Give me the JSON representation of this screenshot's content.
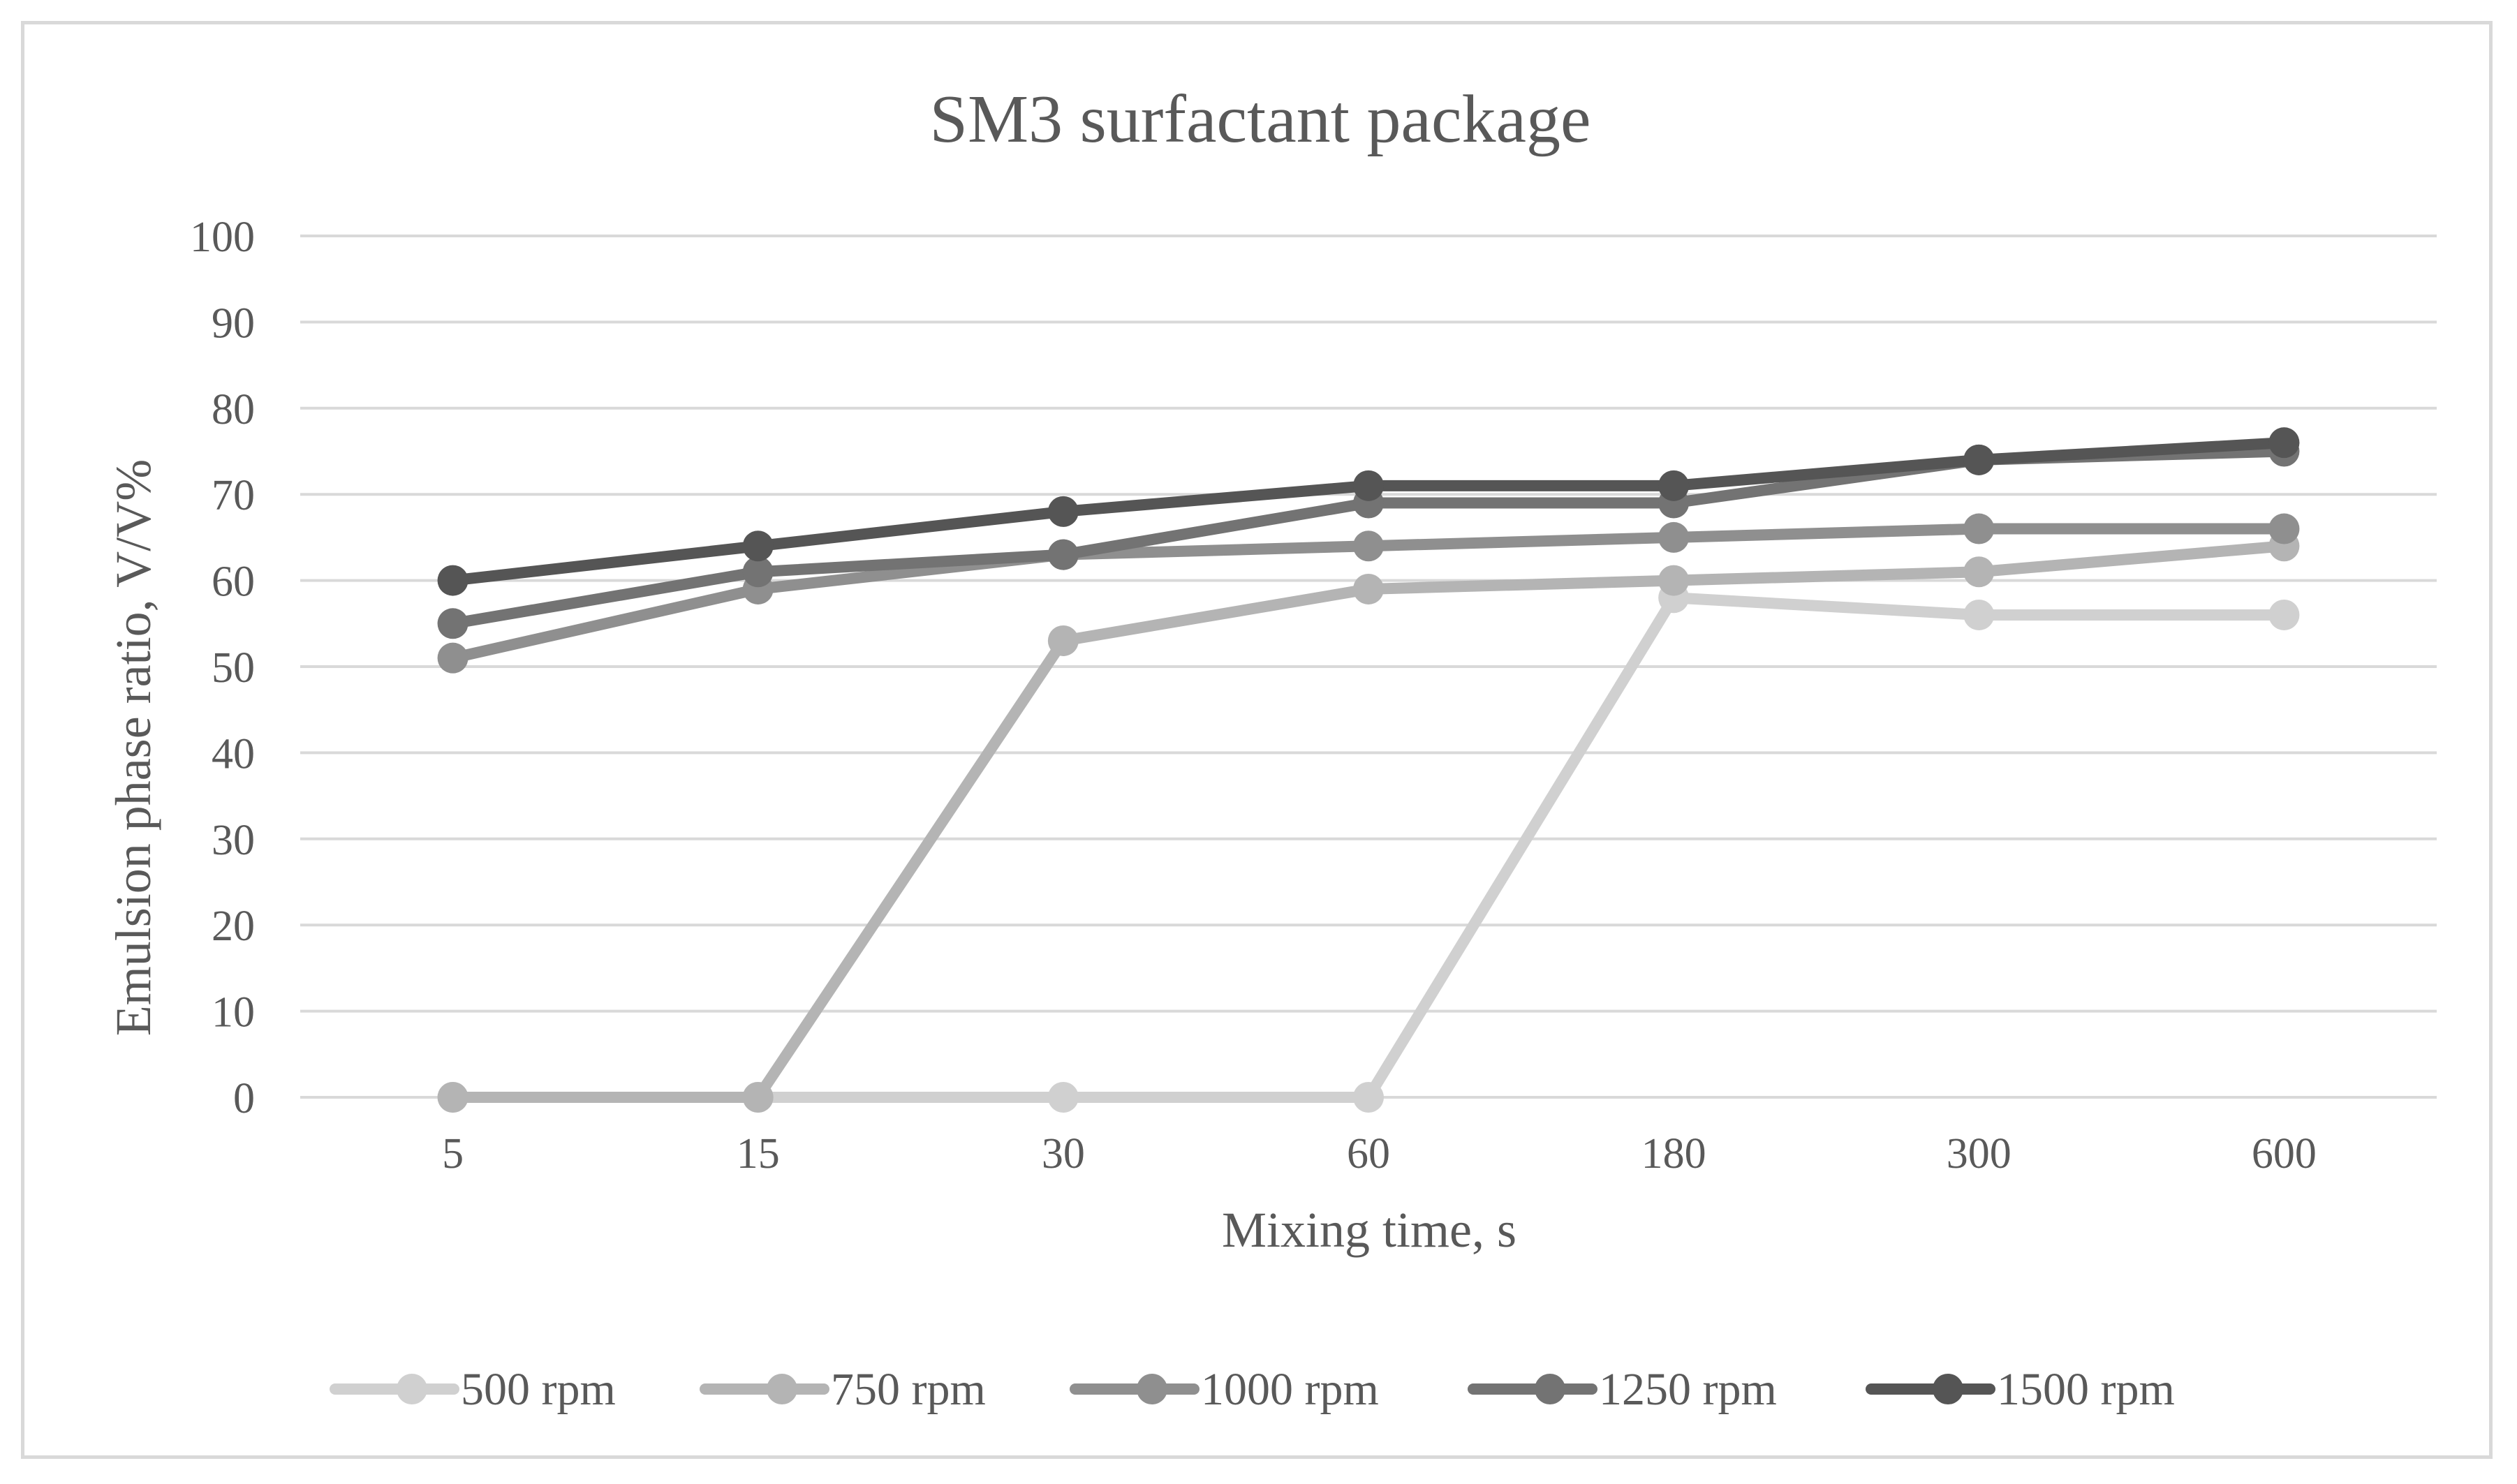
{
  "chart_data": {
    "type": "line",
    "title": "SM3 surfactant  package",
    "xlabel": "Mixing time, s",
    "ylabel": "Emulsion phase ratio, V/V%",
    "categories": [
      "5",
      "15",
      "30",
      "60",
      "180",
      "300",
      "600"
    ],
    "ylim": [
      0,
      100
    ],
    "yticks": [
      0,
      10,
      20,
      30,
      40,
      50,
      60,
      70,
      80,
      90,
      100
    ],
    "grid": true,
    "legend_position": "bottom",
    "series": [
      {
        "name": "500 rpm",
        "color": "#d0d0d0",
        "values": [
          0,
          0,
          0,
          0,
          58,
          56,
          56
        ]
      },
      {
        "name": "750 rpm",
        "color": "#b4b4b4",
        "values": [
          0,
          0,
          53,
          59,
          60,
          61,
          64
        ]
      },
      {
        "name": "1000 rpm",
        "color": "#8f8f8f",
        "values": [
          51,
          59,
          63,
          64,
          65,
          66,
          66
        ]
      },
      {
        "name": "1250 rpm",
        "color": "#737373",
        "values": [
          55,
          61,
          63,
          69,
          69,
          74,
          75
        ]
      },
      {
        "name": "1500 rpm",
        "color": "#555555",
        "values": [
          60,
          64,
          68,
          71,
          71,
          74,
          76
        ]
      }
    ]
  }
}
